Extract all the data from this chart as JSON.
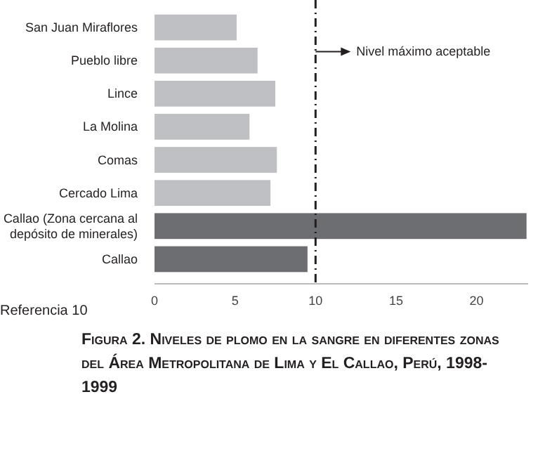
{
  "chart_data": {
    "type": "bar",
    "orientation": "horizontal",
    "title": "Figura 2. Niveles de plomo en la sangre en diferentes zonas del Área Metropolitana de Lima y El Callao, Perú, 1998-1999",
    "categories": [
      "San Juan Miraflores",
      "Pueblo libre",
      "Lince",
      "La Molina",
      "Comas",
      "Cercado Lima",
      "Callao (Zona  cercana al depósito de minerales)",
      "Callao"
    ],
    "values": [
      5.1,
      6.4,
      7.5,
      5.9,
      7.6,
      7.2,
      23.1,
      9.5
    ],
    "colors": [
      "#bfc0c3",
      "#bfc0c3",
      "#bfc0c3",
      "#bfc0c3",
      "#bfc0c3",
      "#bfc0c3",
      "#6d6e71",
      "#6d6e71"
    ],
    "xlim": [
      0,
      23.2
    ],
    "xticks": [
      0,
      5,
      10,
      15,
      20
    ],
    "ref_lines": [
      {
        "axis": "x",
        "value": 10,
        "label": "Nivel máximo aceptable",
        "color": "#231f20",
        "line_style": "dashdot"
      }
    ],
    "annotations": [
      "Referencia 10"
    ],
    "grid": false
  }
}
